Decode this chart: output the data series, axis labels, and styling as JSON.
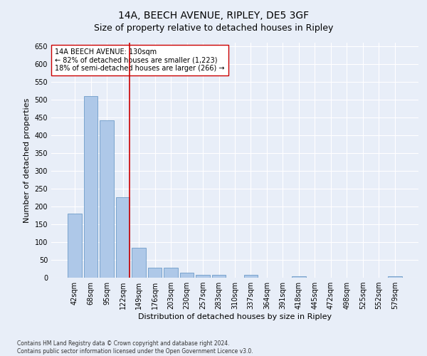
{
  "title": "14A, BEECH AVENUE, RIPLEY, DE5 3GF",
  "subtitle": "Size of property relative to detached houses in Ripley",
  "xlabel": "Distribution of detached houses by size in Ripley",
  "ylabel": "Number of detached properties",
  "footer_line1": "Contains HM Land Registry data © Crown copyright and database right 2024.",
  "footer_line2": "Contains public sector information licensed under the Open Government Licence v3.0.",
  "categories": [
    "42sqm",
    "68sqm",
    "95sqm",
    "122sqm",
    "149sqm",
    "176sqm",
    "203sqm",
    "230sqm",
    "257sqm",
    "283sqm",
    "310sqm",
    "337sqm",
    "364sqm",
    "391sqm",
    "418sqm",
    "445sqm",
    "472sqm",
    "498sqm",
    "525sqm",
    "552sqm",
    "579sqm"
  ],
  "values": [
    180,
    510,
    442,
    226,
    84,
    28,
    28,
    15,
    8,
    8,
    0,
    8,
    0,
    0,
    5,
    0,
    0,
    0,
    0,
    0,
    5
  ],
  "bar_color": "#aec8e8",
  "bar_edge_color": "#5a8fc0",
  "vline_bar_index": 3,
  "vline_color": "#cc0000",
  "annotation_text": "14A BEECH AVENUE: 130sqm\n← 82% of detached houses are smaller (1,223)\n18% of semi-detached houses are larger (266) →",
  "annotation_box_color": "#ffffff",
  "annotation_box_edge_color": "#cc0000",
  "ylim": [
    0,
    660
  ],
  "yticks": [
    0,
    50,
    100,
    150,
    200,
    250,
    300,
    350,
    400,
    450,
    500,
    550,
    600,
    650
  ],
  "background_color": "#e8eef8",
  "plot_bg_color": "#e8eef8",
  "grid_color": "#ffffff",
  "title_fontsize": 10,
  "subtitle_fontsize": 9,
  "xlabel_fontsize": 8,
  "ylabel_fontsize": 8,
  "tick_fontsize": 7,
  "annotation_fontsize": 7,
  "footer_fontsize": 5.5
}
